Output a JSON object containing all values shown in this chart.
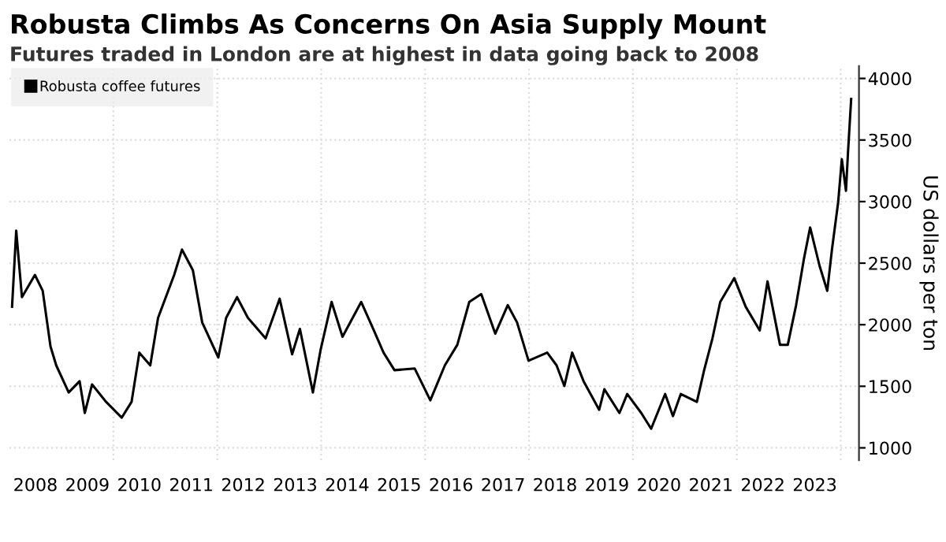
{
  "chart_data": {
    "type": "line",
    "title": "Robusta Climbs As Concerns On Asia Supply Mount",
    "subtitle": "Futures traded in London are at highest in data going back to 2008",
    "ylabel": "US dollars per ton",
    "legend": "top left",
    "grid": true,
    "line_style": "solid",
    "marker": "none",
    "series": [
      {
        "name": "Robusta coffee futures",
        "color": "#000000",
        "x": [
          2008.05,
          2008.13,
          2008.24,
          2008.49,
          2008.64,
          2008.79,
          2008.9,
          2009.14,
          2009.35,
          2009.45,
          2009.59,
          2009.86,
          2010.16,
          2010.35,
          2010.5,
          2010.71,
          2010.86,
          2011.17,
          2011.32,
          2011.53,
          2011.71,
          2012.02,
          2012.17,
          2012.38,
          2012.59,
          2012.93,
          2013.2,
          2013.44,
          2013.59,
          2013.84,
          2013.99,
          2014.2,
          2014.41,
          2014.77,
          2015.0,
          2015.2,
          2015.41,
          2015.8,
          2016.1,
          2016.38,
          2016.62,
          2016.85,
          2017.08,
          2017.35,
          2017.59,
          2017.77,
          2017.99,
          2018.35,
          2018.53,
          2018.68,
          2018.83,
          2019.05,
          2019.35,
          2019.45,
          2019.74,
          2019.89,
          2020.16,
          2020.35,
          2020.62,
          2020.77,
          2020.92,
          2021.23,
          2021.37,
          2021.53,
          2021.68,
          2021.95,
          2022.17,
          2022.44,
          2022.59,
          2022.83,
          2022.98,
          2023.14,
          2023.29,
          2023.41,
          2023.59,
          2023.74,
          2023.83,
          2023.95,
          2024.02,
          2024.1,
          2024.14,
          2024.2
        ],
        "values": [
          2146,
          2764,
          2224,
          2404,
          2275,
          1824,
          1670,
          1450,
          1541,
          1283,
          1515,
          1373,
          1245,
          1373,
          1773,
          1670,
          2056,
          2404,
          2610,
          2443,
          2018,
          1734,
          2056,
          2224,
          2056,
          1889,
          2211,
          1760,
          1966,
          1450,
          1799,
          2185,
          1902,
          2185,
          1966,
          1773,
          1631,
          1644,
          1386,
          1670,
          1837,
          2185,
          2249,
          1927,
          2159,
          2018,
          1708,
          1773,
          1670,
          1502,
          1773,
          1541,
          1309,
          1476,
          1283,
          1437,
          1283,
          1155,
          1437,
          1258,
          1437,
          1373,
          1631,
          1889,
          2185,
          2378,
          2146,
          1953,
          2352,
          1837,
          1837,
          2159,
          2533,
          2790,
          2481,
          2275,
          2610,
          2996,
          3344,
          3087,
          3409,
          3833
        ]
      }
    ],
    "xlim": [
      2008,
      2024.35
    ],
    "ylim": [
      900,
      4100
    ],
    "yticks": [
      1000,
      1500,
      2000,
      2500,
      3000,
      3500,
      4000
    ],
    "xticks": [
      {
        "value": 2008.5,
        "label": "2008"
      },
      {
        "value": 2009.5,
        "label": "2009"
      },
      {
        "value": 2010.5,
        "label": "2010"
      },
      {
        "value": 2011.5,
        "label": "2011"
      },
      {
        "value": 2012.5,
        "label": "2012"
      },
      {
        "value": 2013.5,
        "label": "2013"
      },
      {
        "value": 2014.5,
        "label": "2014"
      },
      {
        "value": 2015.5,
        "label": "2015"
      },
      {
        "value": 2016.5,
        "label": "2016"
      },
      {
        "value": 2017.5,
        "label": "2017"
      },
      {
        "value": 2018.5,
        "label": "2018"
      },
      {
        "value": 2019.5,
        "label": "2019"
      },
      {
        "value": 2020.5,
        "label": "2020"
      },
      {
        "value": 2021.5,
        "label": "2021"
      },
      {
        "value": 2022.5,
        "label": "2022"
      },
      {
        "value": 2023.5,
        "label": "2023"
      },
      {
        "value": 2010,
        "label": null
      },
      {
        "value": 2012,
        "label": null
      },
      {
        "value": 2014,
        "label": null
      },
      {
        "value": 2016,
        "label": null
      },
      {
        "value": 2018,
        "label": null
      },
      {
        "value": 2020,
        "label": null
      },
      {
        "value": 2022,
        "label": null
      },
      {
        "value": 2024,
        "label": null
      }
    ]
  }
}
